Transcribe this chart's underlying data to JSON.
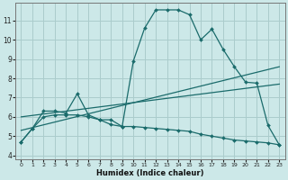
{
  "xlabel": "Humidex (Indice chaleur)",
  "bg_color": "#cce8e8",
  "grid_color": "#aacccc",
  "line_color": "#1a6b6b",
  "xlim": [
    -0.5,
    23.5
  ],
  "ylim": [
    3.8,
    11.9
  ],
  "xticks": [
    0,
    1,
    2,
    3,
    4,
    5,
    6,
    7,
    8,
    9,
    10,
    11,
    12,
    13,
    14,
    15,
    16,
    17,
    18,
    19,
    20,
    21,
    22,
    23
  ],
  "yticks": [
    4,
    5,
    6,
    7,
    8,
    9,
    10,
    11
  ],
  "series": [
    {
      "x": [
        0,
        1,
        2,
        3,
        4,
        5,
        6,
        7,
        8,
        9,
        10,
        11,
        12,
        13,
        14,
        15,
        16,
        17,
        18,
        19,
        20,
        21,
        22,
        23
      ],
      "y": [
        4.7,
        5.4,
        6.3,
        6.3,
        6.2,
        7.2,
        6.1,
        5.85,
        5.85,
        5.5,
        8.9,
        10.6,
        11.55,
        11.55,
        11.55,
        11.3,
        10.0,
        10.55,
        9.5,
        8.6,
        7.8,
        7.75,
        5.55,
        4.55
      ]
    },
    {
      "x": [
        0,
        23
      ],
      "y": [
        5.3,
        8.6
      ]
    },
    {
      "x": [
        0,
        23
      ],
      "y": [
        6.0,
        7.7
      ]
    },
    {
      "x": [
        0,
        1,
        2,
        3,
        4,
        5,
        6,
        7,
        8,
        9,
        10,
        11,
        12,
        13,
        14,
        15,
        16,
        17,
        18,
        19,
        20,
        21,
        22,
        23
      ],
      "y": [
        4.7,
        5.4,
        6.0,
        6.1,
        6.1,
        6.1,
        6.0,
        5.85,
        5.6,
        5.5,
        5.5,
        5.45,
        5.4,
        5.35,
        5.3,
        5.25,
        5.1,
        5.0,
        4.9,
        4.8,
        4.75,
        4.7,
        4.65,
        4.55
      ]
    }
  ]
}
